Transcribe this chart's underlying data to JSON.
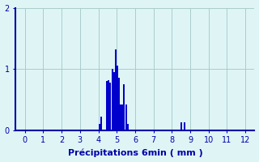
{
  "title": "",
  "xlabel": "Précipitations 6min ( mm )",
  "ylabel": "",
  "xlim": [
    -0.5,
    12.5
  ],
  "ylim": [
    0,
    2
  ],
  "xticks": [
    0,
    1,
    2,
    3,
    4,
    5,
    6,
    7,
    8,
    9,
    10,
    11,
    12
  ],
  "yticks": [
    0,
    1,
    2
  ],
  "background_color": "#dff5f5",
  "bar_color": "#0000cc",
  "grid_color": "#aacccc",
  "bar_data": [
    {
      "x": 4.05,
      "height": 0.1
    },
    {
      "x": 4.15,
      "height": 0.22
    },
    {
      "x": 4.45,
      "height": 0.8
    },
    {
      "x": 4.55,
      "height": 0.82
    },
    {
      "x": 4.65,
      "height": 0.78
    },
    {
      "x": 4.75,
      "height": 1.0
    },
    {
      "x": 4.85,
      "height": 0.95
    },
    {
      "x": 4.9,
      "height": 0.9
    },
    {
      "x": 4.95,
      "height": 1.32
    },
    {
      "x": 5.05,
      "height": 1.05
    },
    {
      "x": 5.1,
      "height": 0.85
    },
    {
      "x": 5.2,
      "height": 0.42
    },
    {
      "x": 5.3,
      "height": 0.42
    },
    {
      "x": 5.4,
      "height": 0.75
    },
    {
      "x": 5.5,
      "height": 0.42
    },
    {
      "x": 5.6,
      "height": 0.1
    },
    {
      "x": 8.5,
      "height": 0.13
    },
    {
      "x": 8.7,
      "height": 0.13
    }
  ],
  "bar_width": 0.09,
  "tick_color": "#0000aa",
  "label_color": "#0000aa",
  "axis_color": "#0000aa",
  "tick_labelsize": 7,
  "xlabel_fontsize": 8
}
